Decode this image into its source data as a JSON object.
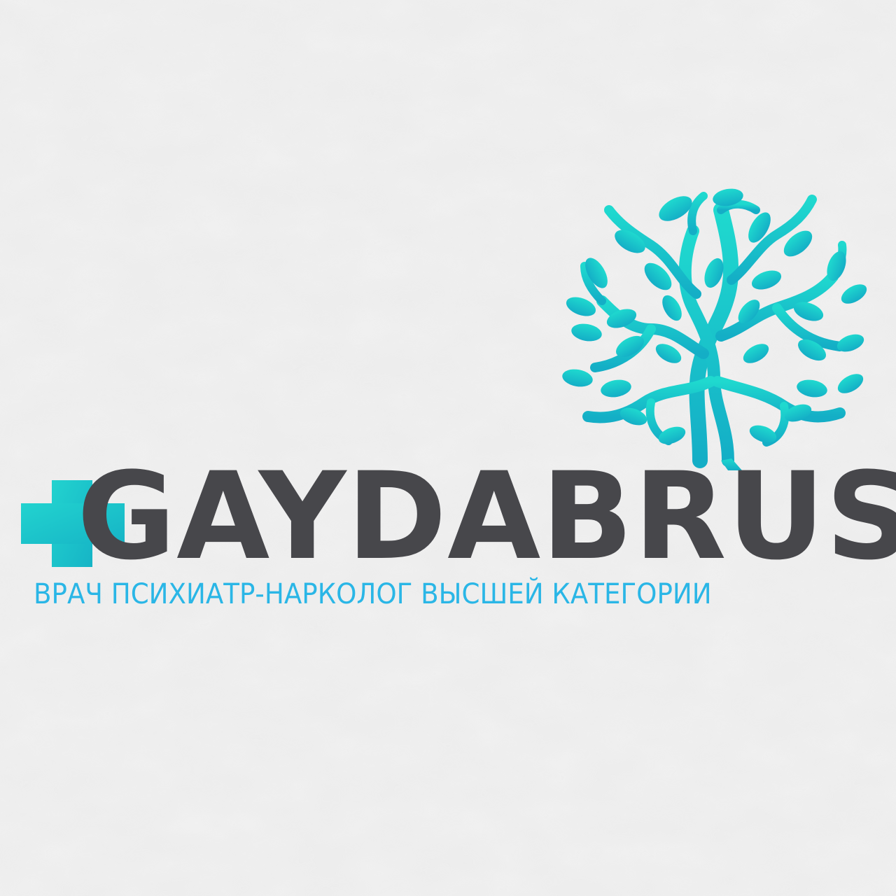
{
  "brand": {
    "name": "GAYDABRUS",
    "tagline": "ВРАЧ ПСИХИАТР-НАРКОЛОГ ВЫСШЕЙ КАТЕГОРИИ"
  },
  "icons": [
    "medical-cross-icon",
    "tree-icon"
  ],
  "colors": {
    "background": "#eeeeee",
    "name": "#47474b",
    "tagline": "#2ab6e6",
    "tree_top": "#1fd6d0",
    "tree_bottom": "#14b0c4",
    "cross": "#22c8d6"
  }
}
